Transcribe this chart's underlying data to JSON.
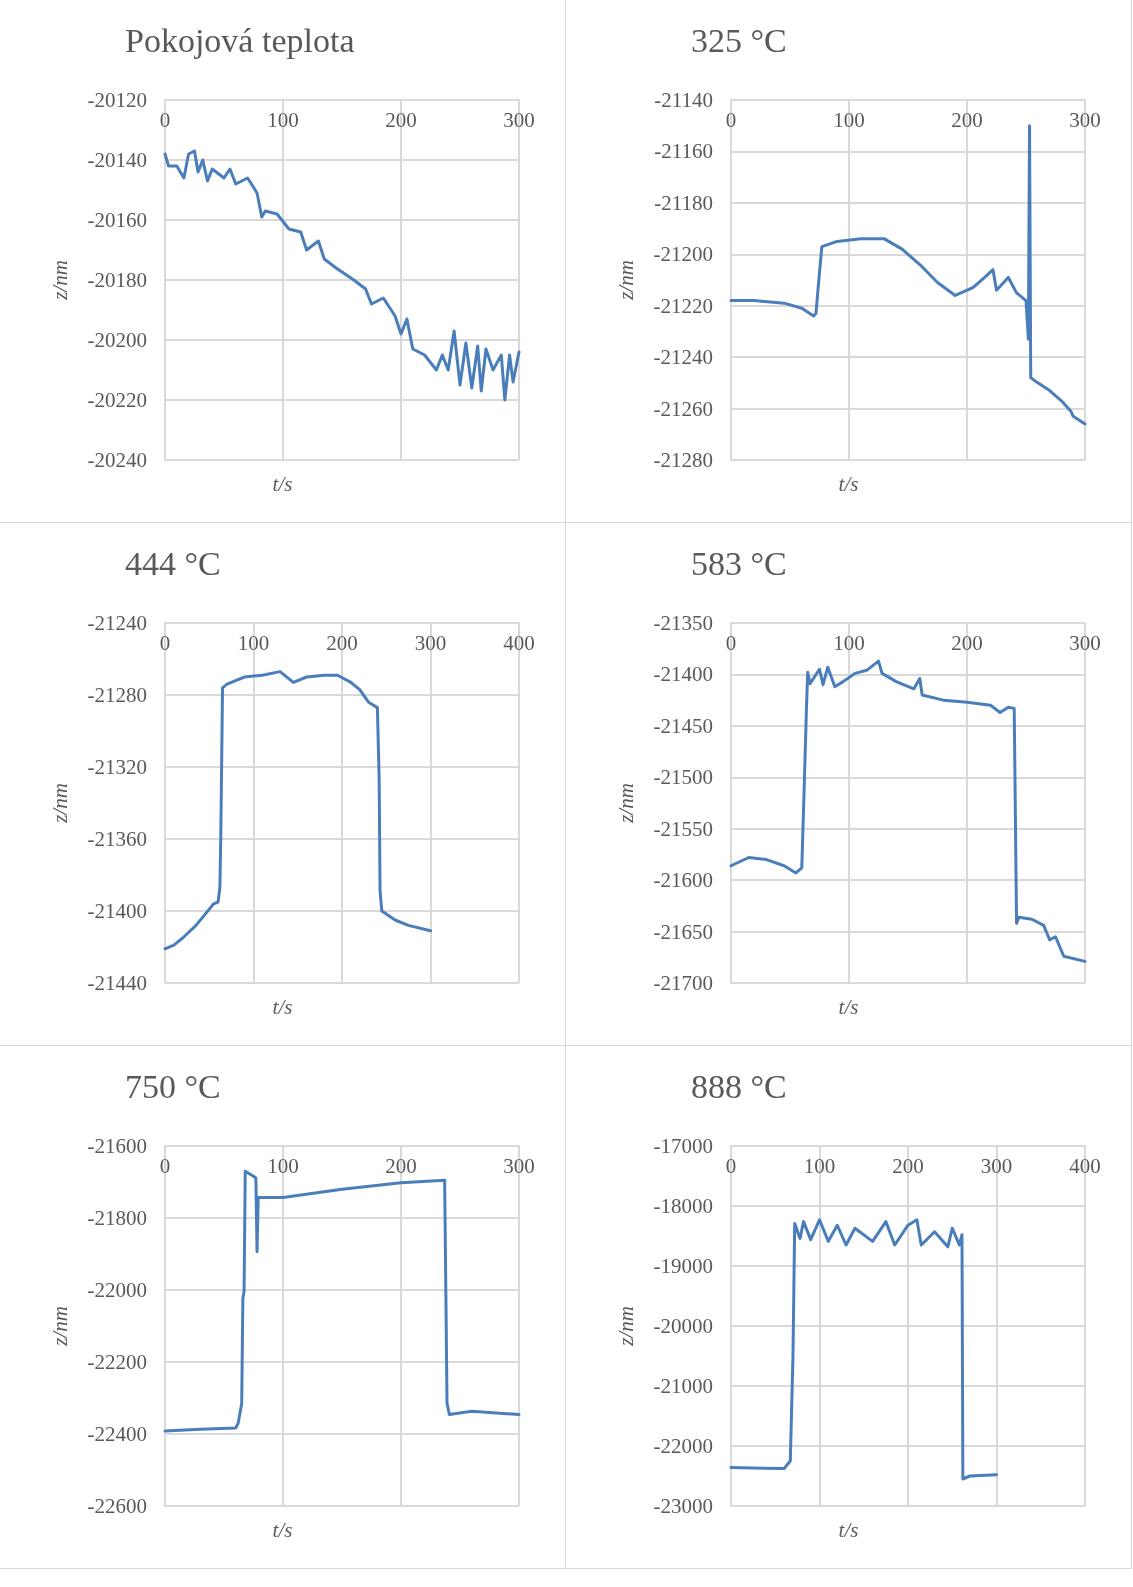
{
  "chart_data": [
    {
      "type": "line",
      "title": "Pokojová teplota",
      "xlabel": "t/s",
      "ylabel": "z/nm",
      "xlim": [
        0,
        300
      ],
      "xticks": [
        0,
        100,
        200,
        300
      ],
      "ylim": [
        -20240,
        -20120
      ],
      "yticks": [
        -20240,
        -20220,
        -20200,
        -20180,
        -20160,
        -20140,
        -20120
      ],
      "grid": true,
      "marker": "none",
      "line_style": "solid",
      "series": [
        {
          "color": "#4a7ebb",
          "x": [
            0,
            3,
            10,
            16,
            20,
            25,
            28,
            32,
            36,
            40,
            50,
            55,
            60,
            70,
            78,
            82,
            85,
            95,
            105,
            115,
            120,
            130,
            135,
            145,
            160,
            170,
            175,
            185,
            195,
            200,
            205,
            210,
            220,
            230,
            235,
            240,
            245,
            250,
            255,
            260,
            265,
            268,
            272,
            278,
            285,
            288,
            292,
            295,
            300
          ],
          "values": [
            -20138,
            -20142,
            -20142,
            -20146,
            -20138,
            -20137,
            -20144,
            -20140,
            -20147,
            -20143,
            -20146,
            -20143,
            -20148,
            -20146,
            -20151,
            -20159,
            -20157,
            -20158,
            -20163,
            -20164,
            -20170,
            -20167,
            -20173,
            -20176,
            -20180,
            -20183,
            -20188,
            -20186,
            -20192,
            -20198,
            -20193,
            -20203,
            -20205,
            -20210,
            -20205,
            -20210,
            -20197,
            -20215,
            -20201,
            -20216,
            -20202,
            -20217,
            -20203,
            -20210,
            -20205,
            -20220,
            -20205,
            -20214,
            -20204
          ]
        }
      ]
    },
    {
      "type": "line",
      "title": "325 °C",
      "xlabel": "t/s",
      "ylabel": "z/nm",
      "xlim": [
        0,
        300
      ],
      "xticks": [
        0,
        100,
        200,
        300
      ],
      "ylim": [
        -21280,
        -21140
      ],
      "yticks": [
        -21280,
        -21260,
        -21240,
        -21220,
        -21200,
        -21180,
        -21160,
        -21140
      ],
      "grid": true,
      "marker": "none",
      "line_style": "solid",
      "series": [
        {
          "color": "#4a7ebb",
          "x": [
            0,
            20,
            45,
            60,
            70,
            72,
            75,
            77,
            90,
            110,
            130,
            145,
            160,
            175,
            190,
            205,
            215,
            222,
            225,
            235,
            242,
            250,
            252,
            253,
            254,
            260,
            270,
            280,
            288,
            290,
            300
          ],
          "values": [
            -21218,
            -21218,
            -21219,
            -21221,
            -21224,
            -21223,
            -21207,
            -21197,
            -21195,
            -21194,
            -21194,
            -21198,
            -21204,
            -21211,
            -21216,
            -21213,
            -21209,
            -21206,
            -21214,
            -21209,
            -21215,
            -21218,
            -21233,
            -21150,
            -21248,
            -21250,
            -21253,
            -21257,
            -21261,
            -21263,
            -21266
          ]
        }
      ]
    },
    {
      "type": "line",
      "title": "444 °C",
      "xlabel": "t/s",
      "ylabel": "z/nm",
      "xlim": [
        0,
        400
      ],
      "xticks": [
        0,
        100,
        200,
        300,
        400
      ],
      "ylim": [
        -21440,
        -21240
      ],
      "yticks": [
        -21440,
        -21400,
        -21360,
        -21320,
        -21280,
        -21240
      ],
      "grid": true,
      "marker": "none",
      "line_style": "solid",
      "series": [
        {
          "color": "#4a7ebb",
          "x": [
            0,
            10,
            20,
            35,
            45,
            55,
            60,
            62,
            63,
            65,
            70,
            90,
            110,
            130,
            145,
            160,
            180,
            195,
            210,
            220,
            230,
            240,
            242,
            243,
            245,
            260,
            275,
            300
          ],
          "values": [
            -21421,
            -21419,
            -21415,
            -21408,
            -21402,
            -21396,
            -21395,
            -21387,
            -21360,
            -21276,
            -21274,
            -21270,
            -21269,
            -21267,
            -21273,
            -21270,
            -21269,
            -21269,
            -21273,
            -21277,
            -21284,
            -21287,
            -21327,
            -21389,
            -21400,
            -21405,
            -21408,
            -21411
          ]
        }
      ]
    },
    {
      "type": "line",
      "title": "583 °C",
      "xlabel": "t/s",
      "ylabel": "z/nm",
      "xlim": [
        0,
        300
      ],
      "xticks": [
        0,
        100,
        200,
        300
      ],
      "ylim": [
        -21700,
        -21350
      ],
      "yticks": [
        -21700,
        -21650,
        -21600,
        -21550,
        -21500,
        -21450,
        -21400,
        -21350
      ],
      "grid": true,
      "marker": "none",
      "line_style": "solid",
      "series": [
        {
          "color": "#4a7ebb",
          "x": [
            0,
            15,
            30,
            45,
            55,
            60,
            62,
            64,
            65,
            67,
            75,
            78,
            82,
            88,
            95,
            105,
            115,
            125,
            128,
            140,
            155,
            160,
            162,
            180,
            200,
            220,
            228,
            235,
            240,
            242,
            244,
            255,
            265,
            270,
            275,
            282,
            300
          ],
          "values": [
            -21586,
            -21578,
            -21580,
            -21586,
            -21593,
            -21588,
            -21511,
            -21431,
            -21398,
            -21409,
            -21395,
            -21410,
            -21393,
            -21412,
            -21407,
            -21399,
            -21396,
            -21387,
            -21399,
            -21407,
            -21414,
            -21404,
            -21420,
            -21425,
            -21427,
            -21430,
            -21437,
            -21432,
            -21433,
            -21642,
            -21636,
            -21638,
            -21644,
            -21658,
            -21655,
            -21674,
            -21679
          ]
        }
      ]
    },
    {
      "type": "line",
      "title": "750 °C",
      "xlabel": "t/s",
      "ylabel": "z/nm",
      "xlim": [
        0,
        300
      ],
      "xticks": [
        0,
        100,
        200,
        300
      ],
      "ylim": [
        -22600,
        -21600
      ],
      "yticks": [
        -22600,
        -22400,
        -22200,
        -22000,
        -21800,
        -21600
      ],
      "grid": true,
      "marker": "none",
      "line_style": "solid",
      "series": [
        {
          "color": "#4a7ebb",
          "x": [
            0,
            30,
            60,
            62,
            65,
            66,
            67,
            68,
            75,
            77,
            78,
            79,
            100,
            150,
            200,
            237,
            239,
            241,
            260,
            300
          ],
          "values": [
            -22392,
            -22387,
            -22383,
            -22370,
            -22315,
            -22022,
            -22004,
            -21670,
            -21684,
            -21689,
            -21894,
            -21743,
            -21743,
            -21720,
            -21702,
            -21695,
            -22314,
            -22346,
            -22337,
            -22346
          ]
        }
      ]
    },
    {
      "type": "line",
      "title": "888 °C",
      "xlabel": "t/s",
      "ylabel": "z/nm",
      "xlim": [
        0,
        400
      ],
      "xticks": [
        0,
        100,
        200,
        300,
        400
      ],
      "ylim": [
        -23000,
        -17000
      ],
      "yticks": [
        -23000,
        -22000,
        -21000,
        -20000,
        -19000,
        -18000,
        -17000
      ],
      "grid": true,
      "marker": "none",
      "line_style": "solid",
      "series": [
        {
          "color": "#4a7ebb",
          "x": [
            0,
            60,
            67,
            70,
            72,
            78,
            82,
            90,
            100,
            110,
            120,
            130,
            140,
            160,
            175,
            185,
            200,
            210,
            215,
            230,
            245,
            250,
            258,
            261,
            262,
            270,
            300
          ],
          "values": [
            -22360,
            -22375,
            -22250,
            -20520,
            -18290,
            -18540,
            -18260,
            -18560,
            -18230,
            -18590,
            -18320,
            -18650,
            -18370,
            -18590,
            -18260,
            -18650,
            -18320,
            -18230,
            -18650,
            -18430,
            -18680,
            -18370,
            -18650,
            -18480,
            -22550,
            -22500,
            -22480
          ]
        }
      ]
    }
  ]
}
